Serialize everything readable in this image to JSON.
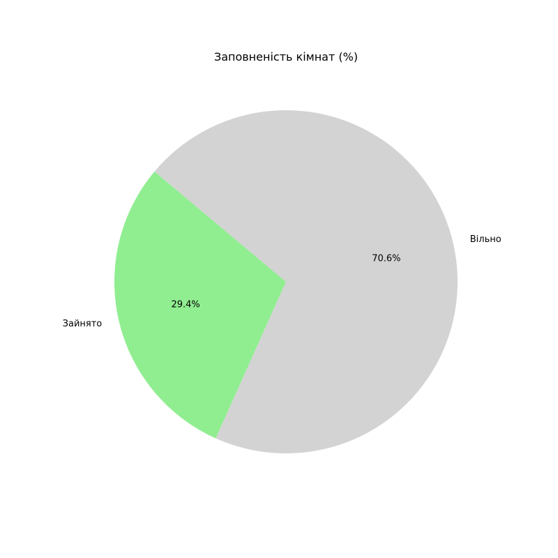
{
  "chart_data": {
    "type": "pie",
    "title": "Заповненість кімнат (%)",
    "categories": [
      "Зайнято",
      "Вільно"
    ],
    "values": [
      29.4,
      70.6
    ],
    "value_labels": [
      "29.4%",
      "70.6%"
    ],
    "colors": [
      "#90ee90",
      "#d3d3d3"
    ],
    "start_angle_deg": 140,
    "direction": "counterclockwise",
    "legend": "none"
  }
}
